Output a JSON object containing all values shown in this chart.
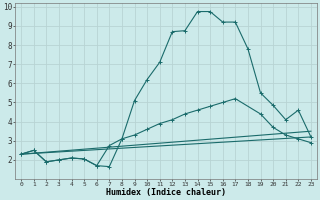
{
  "xlabel": "Humidex (Indice chaleur)",
  "bg_color": "#cceaea",
  "grid_color": "#b8d4d4",
  "line_color": "#1a6b6b",
  "xlim": [
    -0.5,
    23.5
  ],
  "ylim": [
    1.0,
    10.2
  ],
  "xticks": [
    0,
    1,
    2,
    3,
    4,
    5,
    6,
    7,
    8,
    9,
    10,
    11,
    12,
    13,
    14,
    15,
    16,
    17,
    18,
    19,
    20,
    21,
    22,
    23
  ],
  "yticks": [
    2,
    3,
    4,
    5,
    6,
    7,
    8,
    9,
    10
  ],
  "series1": {
    "x": [
      0,
      1,
      2,
      3,
      4,
      5,
      6,
      7,
      8,
      9,
      10,
      11,
      12,
      13,
      14,
      15,
      16,
      17,
      18,
      19,
      20,
      21,
      22,
      23
    ],
    "y": [
      2.3,
      2.5,
      1.9,
      2.0,
      2.1,
      2.05,
      1.7,
      1.65,
      3.1,
      5.1,
      6.2,
      7.1,
      8.7,
      8.75,
      9.75,
      9.75,
      9.2,
      9.2,
      7.8,
      5.5,
      4.85,
      4.1,
      4.6,
      3.2
    ]
  },
  "series2": {
    "x": [
      0,
      1,
      2,
      3,
      4,
      5,
      6,
      7,
      8,
      9,
      10,
      11,
      12,
      13,
      14,
      15,
      16,
      17,
      19,
      20,
      21,
      22,
      23
    ],
    "y": [
      2.3,
      2.5,
      1.9,
      2.0,
      2.1,
      2.05,
      1.7,
      2.75,
      3.1,
      3.3,
      3.6,
      3.9,
      4.1,
      4.4,
      4.6,
      4.8,
      5.0,
      5.2,
      4.4,
      3.7,
      3.3,
      3.1,
      2.9
    ]
  },
  "line1": {
    "x": [
      0,
      23
    ],
    "y": [
      2.3,
      3.5
    ]
  },
  "line2": {
    "x": [
      0,
      23
    ],
    "y": [
      2.3,
      3.2
    ]
  }
}
